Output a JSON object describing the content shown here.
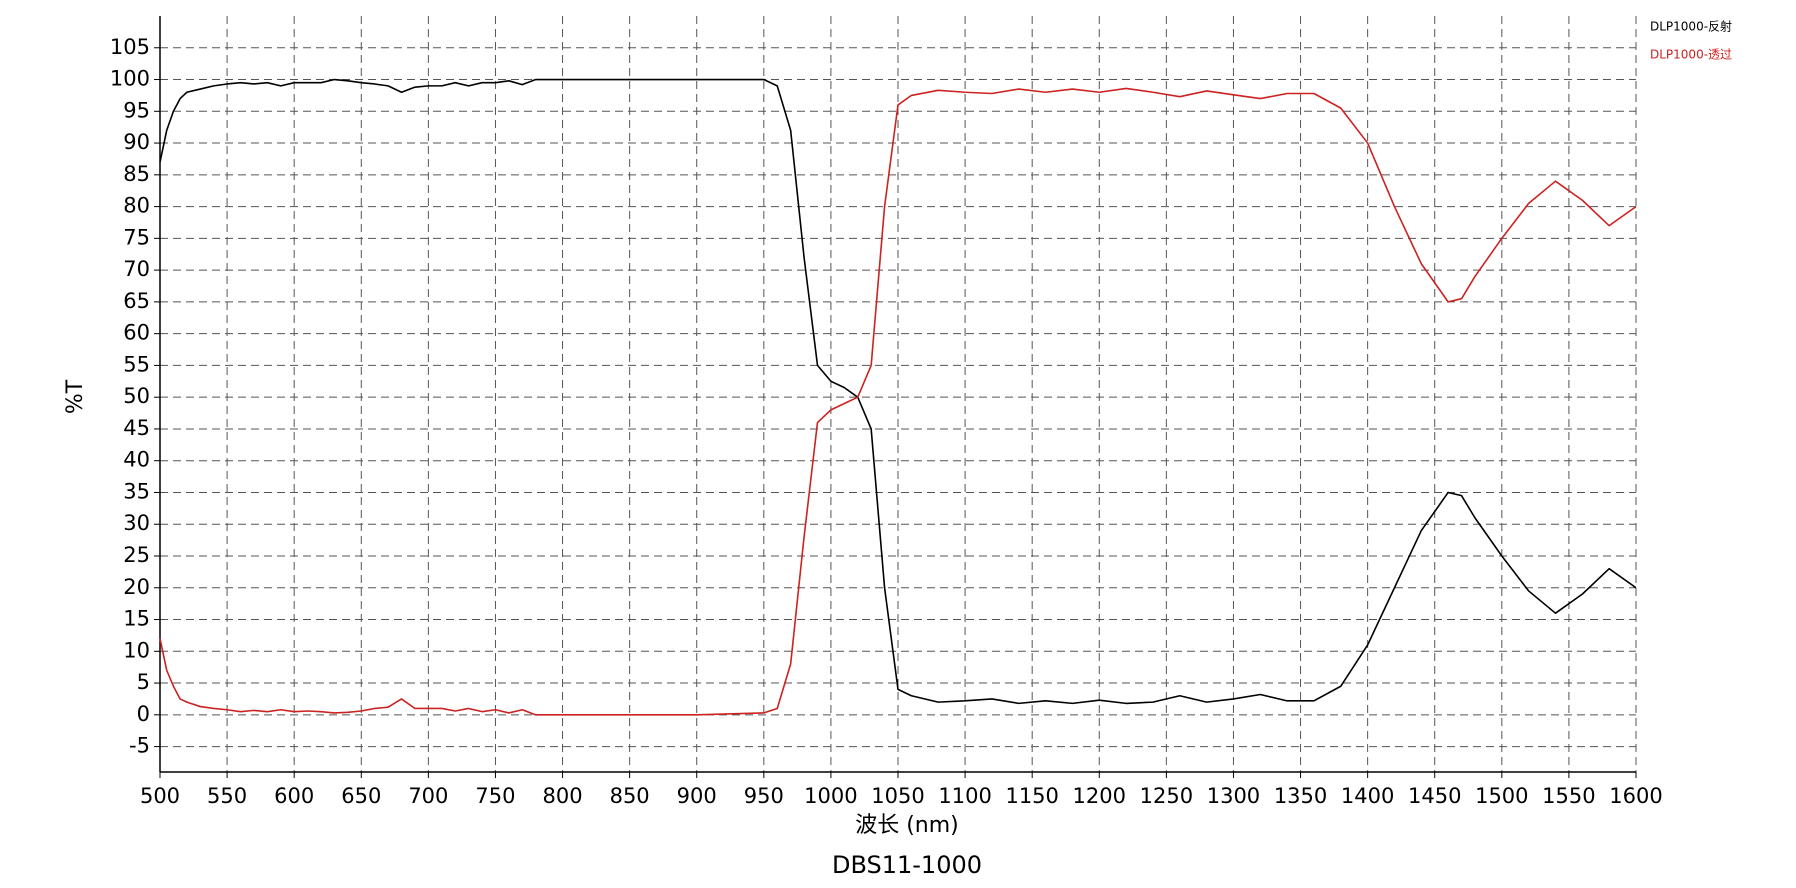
{
  "chart_data": {
    "type": "line",
    "title": "DBS11-1000",
    "x_label": "波长 (nm)",
    "y_label": "%T",
    "x": [
      500,
      505,
      510,
      515,
      520,
      530,
      540,
      550,
      560,
      570,
      580,
      590,
      600,
      610,
      620,
      630,
      640,
      650,
      660,
      670,
      680,
      690,
      700,
      710,
      720,
      730,
      740,
      750,
      760,
      770,
      780,
      800,
      850,
      900,
      950,
      960,
      970,
      980,
      990,
      1000,
      1010,
      1020,
      1030,
      1040,
      1050,
      1060,
      1080,
      1100,
      1120,
      1140,
      1160,
      1180,
      1200,
      1220,
      1240,
      1260,
      1280,
      1300,
      1320,
      1340,
      1360,
      1380,
      1400,
      1420,
      1440,
      1460,
      1470,
      1480,
      1500,
      1520,
      1540,
      1560,
      1580,
      1600
    ],
    "series": [
      {
        "name": "DLP1000-反射",
        "color": "#000000",
        "values": [
          87,
          92,
          95,
          97,
          98,
          98.5,
          99,
          99.3,
          99.5,
          99.3,
          99.5,
          99,
          99.5,
          99.5,
          99.5,
          100,
          99.8,
          99.5,
          99.3,
          99,
          98,
          98.8,
          99,
          99,
          99.5,
          99,
          99.5,
          99.5,
          99.8,
          99.2,
          100,
          100,
          100,
          100,
          100,
          99,
          92,
          72,
          55,
          52.5,
          51.5,
          50,
          45,
          20,
          4,
          3,
          2,
          2.2,
          2.5,
          1.8,
          2.2,
          1.8,
          2.3,
          1.8,
          2,
          3,
          2,
          2.5,
          3.2,
          2.2,
          2.2,
          4.5,
          11,
          20,
          29,
          35,
          34.5,
          31,
          25,
          19.5,
          16,
          19,
          23,
          20
        ]
      },
      {
        "name": "DLP1000-透过",
        "color": "#cc2222",
        "values": [
          12,
          7,
          4.5,
          2.5,
          2,
          1.3,
          1,
          0.8,
          0.5,
          0.7,
          0.5,
          0.8,
          0.5,
          0.6,
          0.5,
          0.3,
          0.4,
          0.6,
          1,
          1.2,
          2.5,
          1,
          1,
          1,
          0.6,
          1,
          0.5,
          0.8,
          0.3,
          0.8,
          0,
          0,
          0,
          0,
          0.3,
          1,
          8,
          28,
          46,
          48,
          49,
          50,
          55,
          80,
          96,
          97.5,
          98.3,
          98,
          97.8,
          98.5,
          98,
          98.5,
          98,
          98.6,
          98,
          97.3,
          98.2,
          97.6,
          97,
          97.8,
          97.8,
          95.5,
          90,
          80,
          71,
          65,
          65.5,
          69,
          75,
          80.5,
          84,
          81,
          77,
          80
        ]
      }
    ],
    "xlim": [
      500,
      1600
    ],
    "ylim": [
      -9,
      110
    ],
    "xticks": [
      500,
      550,
      600,
      650,
      700,
      750,
      800,
      850,
      900,
      950,
      1000,
      1050,
      1100,
      1150,
      1200,
      1250,
      1300,
      1350,
      1400,
      1450,
      1500,
      1550,
      1600
    ],
    "yticks": [
      -5,
      0,
      5,
      10,
      15,
      20,
      25,
      30,
      35,
      40,
      45,
      50,
      55,
      60,
      65,
      70,
      75,
      80,
      85,
      90,
      95,
      100,
      105
    ],
    "grid": true,
    "legend": "top-right"
  }
}
